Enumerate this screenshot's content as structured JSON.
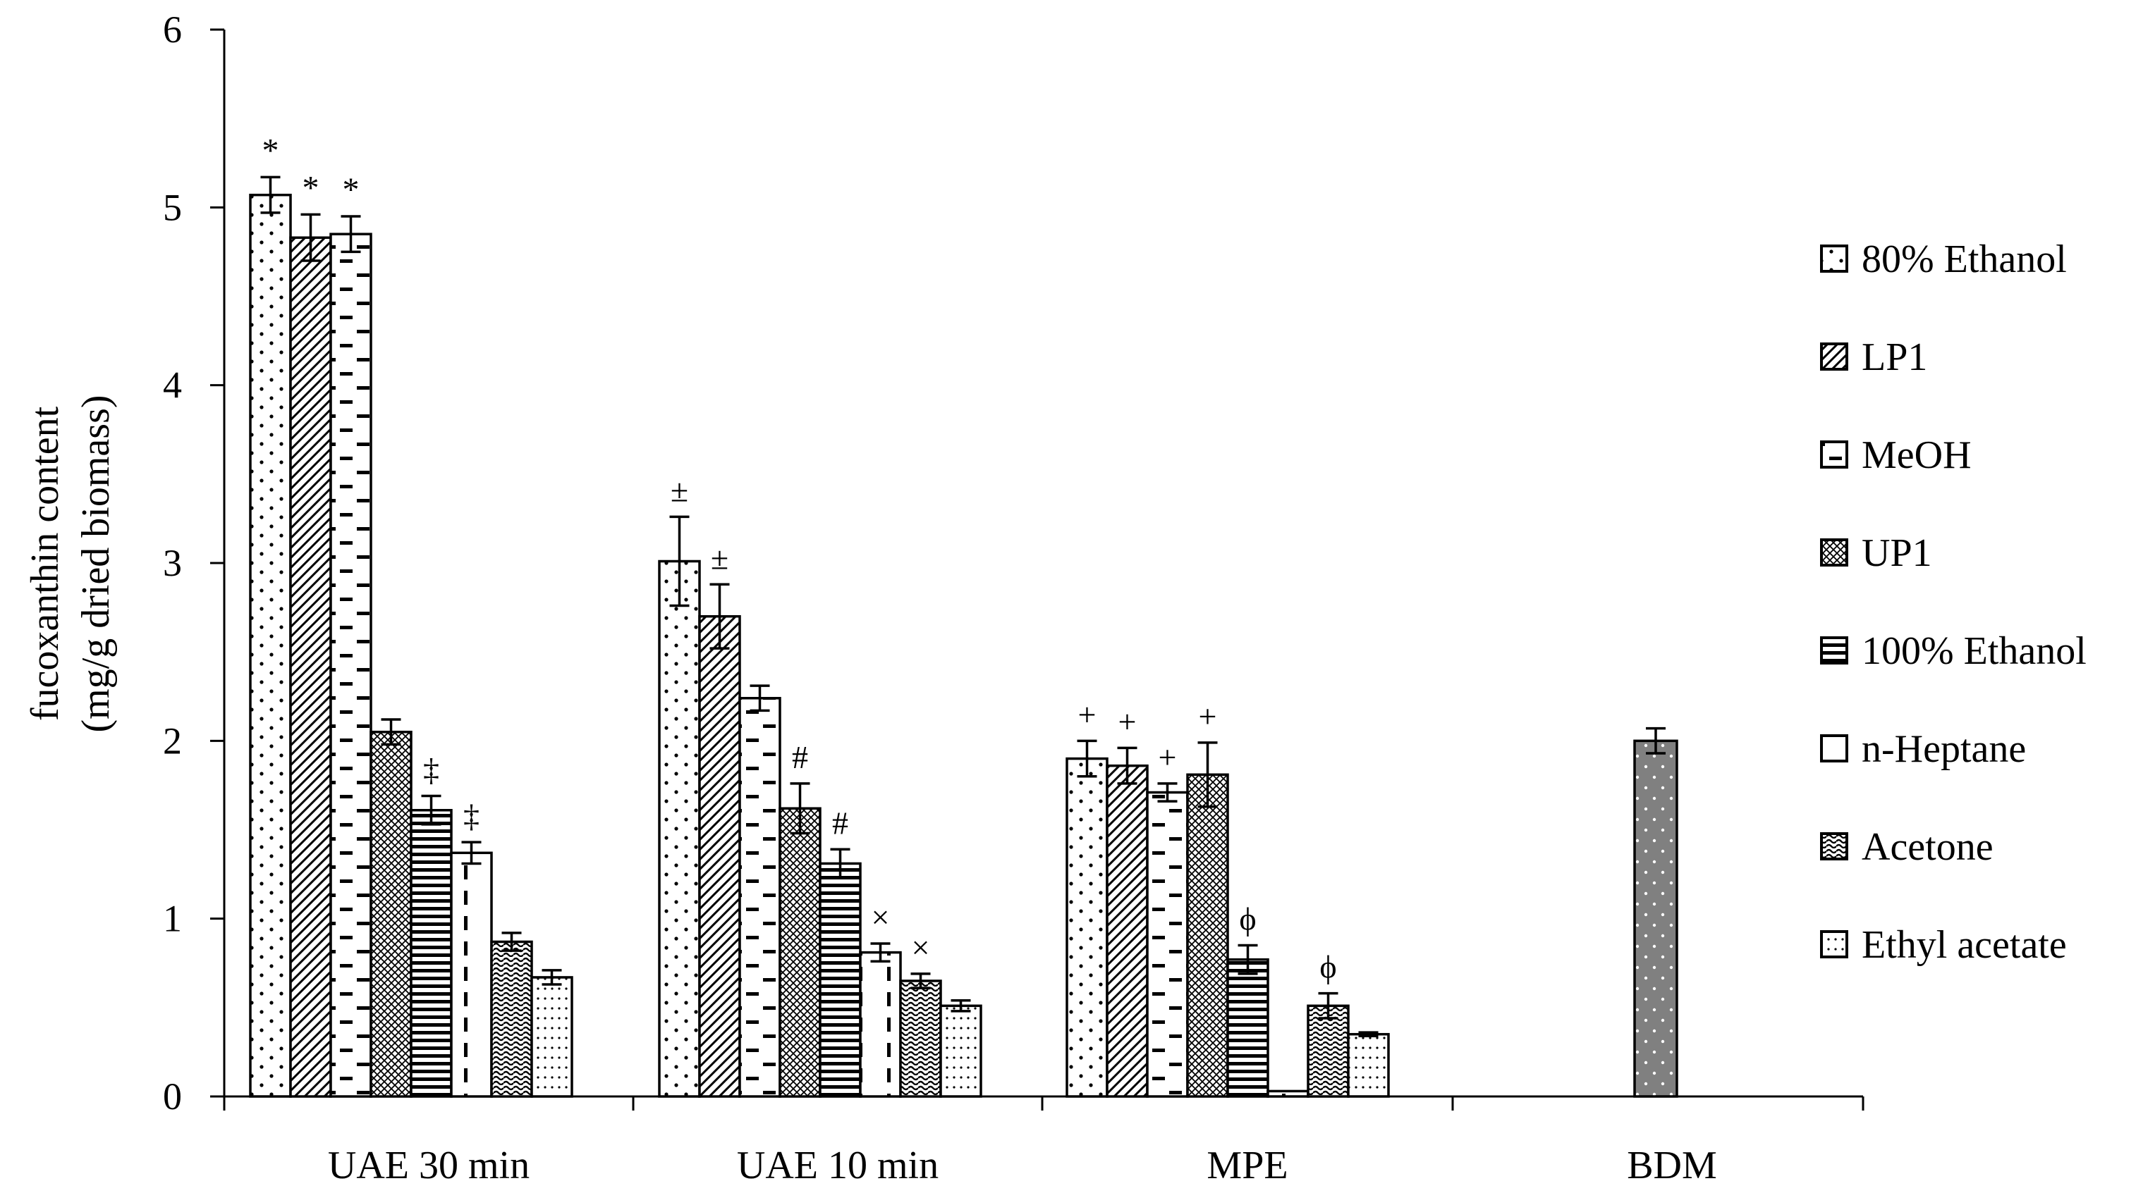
{
  "chart_data": {
    "type": "bar",
    "title": "",
    "ylabel": [
      "fucoxanthin content",
      "(mg/g dried biomass)"
    ],
    "xlabel": "",
    "ylim": [
      0,
      6
    ],
    "yticks": [
      "0",
      "1",
      "2",
      "3",
      "4",
      "5",
      "6"
    ],
    "categories": [
      "UAE 30 min",
      "UAE 10 min",
      "MPE",
      "BDM"
    ],
    "legend_position": "right",
    "series": [
      {
        "name": "80% Ethanol",
        "pattern": "dots",
        "values": [
          5.07,
          3.01,
          1.9,
          null
        ],
        "errors": [
          0.1,
          0.25,
          0.1,
          null
        ],
        "marks": [
          "*",
          "±",
          "+",
          null
        ]
      },
      {
        "name": "LP1",
        "pattern": "diagonal",
        "values": [
          4.83,
          2.7,
          1.86,
          null
        ],
        "errors": [
          0.13,
          0.18,
          0.1,
          null
        ],
        "marks": [
          "*",
          "±",
          "+",
          null
        ]
      },
      {
        "name": "MeOH",
        "pattern": "dashes",
        "values": [
          4.85,
          2.24,
          1.71,
          null
        ],
        "errors": [
          0.1,
          0.07,
          0.05,
          null
        ],
        "marks": [
          "*",
          null,
          "+",
          null
        ]
      },
      {
        "name": "UP1",
        "pattern": "cross",
        "values": [
          2.05,
          1.62,
          1.81,
          null
        ],
        "errors": [
          0.07,
          0.14,
          0.18,
          null
        ],
        "marks": [
          null,
          "#",
          "+",
          null
        ]
      },
      {
        "name": "100% Ethanol",
        "pattern": "horizontal",
        "values": [
          1.61,
          1.31,
          0.77,
          null
        ],
        "errors": [
          0.08,
          0.08,
          0.08,
          null
        ],
        "marks": [
          "‡",
          "#",
          "ϕ",
          null
        ]
      },
      {
        "name": "n-Heptane",
        "pattern": "vdash",
        "values": [
          1.37,
          0.81,
          0.03,
          null
        ],
        "errors": [
          0.06,
          0.05,
          0.0,
          null
        ],
        "marks": [
          "‡",
          "×",
          null,
          null
        ]
      },
      {
        "name": "Acetone",
        "pattern": "waves",
        "values": [
          0.87,
          0.65,
          0.51,
          null
        ],
        "errors": [
          0.05,
          0.04,
          0.07,
          null
        ],
        "marks": [
          null,
          "×",
          "ϕ",
          null
        ]
      },
      {
        "name": "Ethyl acetate",
        "pattern": "grid",
        "values": [
          0.67,
          0.51,
          0.35,
          null
        ],
        "errors": [
          0.04,
          0.03,
          0.01,
          null
        ],
        "marks": [
          null,
          null,
          null,
          null
        ]
      }
    ],
    "bdm": {
      "name": "BDM",
      "value": 2.0,
      "error": 0.07,
      "color": "#808080"
    },
    "colors": {
      "axis": "#000000",
      "bar_fill": "#ffffff",
      "bdm_fill": "#808080"
    }
  }
}
